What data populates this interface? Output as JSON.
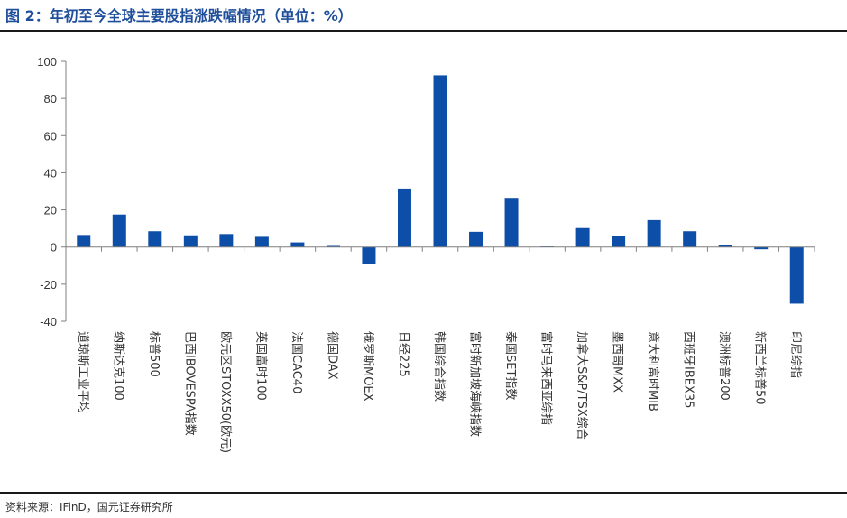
{
  "header": {
    "title": "图 2：年初至今全球主要股指涨跌幅情况（单位：%）"
  },
  "footer": {
    "source": "资料来源：IFinD，国元证券研究所"
  },
  "chart_data": {
    "type": "bar",
    "title": "图 2：年初至今全球主要股指涨跌幅情况（单位：%）",
    "xlabel": "",
    "ylabel": "",
    "ylim": [
      -40,
      100
    ],
    "yticks": [
      100,
      80,
      60,
      40,
      20,
      0,
      -20,
      -40
    ],
    "grid": false,
    "legend": "none",
    "bar_color": "#0D4FA8",
    "categories": [
      "道琼斯工业平均",
      "纳斯达克100",
      "标普500",
      "巴西IBOVESPA指数",
      "欧元区STOXX50(欧元)",
      "英国富时100",
      "法国CAC40",
      "德国DAX",
      "俄罗斯MOEX",
      "日经225",
      "韩国综合指数",
      "富时新加坡海峡指数",
      "泰国SET指数",
      "富时马来西亚综指",
      "加拿大S&P/TSX综合",
      "墨西哥MXX",
      "意大利富时MIB",
      "西班牙IBEX35",
      "澳洲标普200",
      "新西兰标普50",
      "印尼综指"
    ],
    "values": [
      6.5,
      17.5,
      8.5,
      6.3,
      7.0,
      5.5,
      2.5,
      0.6,
      -9.0,
      31.5,
      92.5,
      8.2,
      26.5,
      0.3,
      10.2,
      5.8,
      14.5,
      8.5,
      1.2,
      -1.2,
      -30.5
    ]
  }
}
